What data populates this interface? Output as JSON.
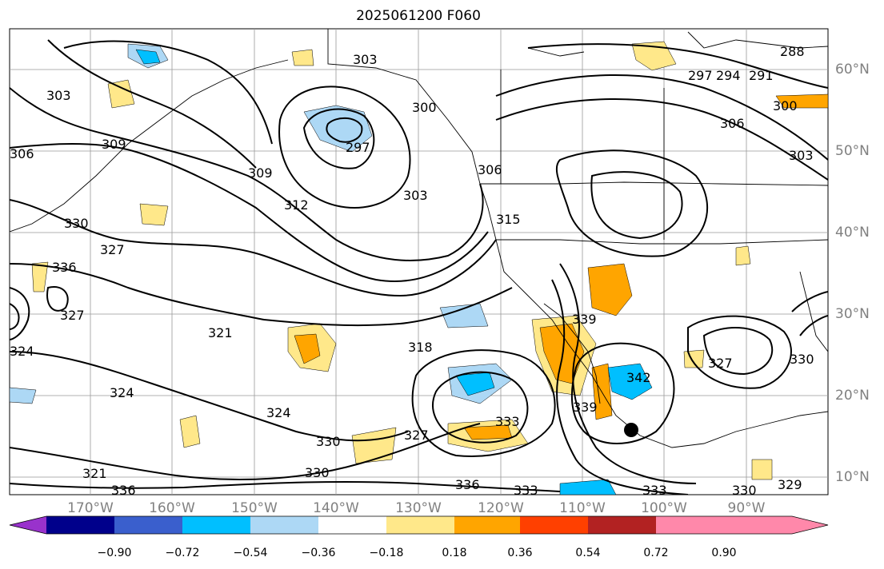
{
  "title": "2025061200 F060",
  "lat_labels": [
    "60°N",
    "50°N",
    "40°N",
    "30°N",
    "20°N",
    "10°N"
  ],
  "lon_labels": [
    "170°W",
    "160°W",
    "150°W",
    "140°W",
    "130°W",
    "120°W",
    "110°W",
    "100°W",
    "90°W"
  ],
  "contour_labels": [
    "303",
    "309",
    "309",
    "312",
    "297",
    "300",
    "306",
    "303",
    "303",
    "315",
    "306",
    "303",
    "300",
    "291",
    "294",
    "297",
    "288",
    "327",
    "330",
    "336",
    "327",
    "321",
    "324",
    "324",
    "324",
    "321",
    "330",
    "318",
    "327",
    "330",
    "333",
    "336",
    "339",
    "342",
    "327",
    "330",
    "333",
    "336",
    "339",
    "330",
    "329",
    "333",
    "306"
  ],
  "colorbar": {
    "tick_labels": [
      "−0.90",
      "−0.72",
      "−0.54",
      "−0.36",
      "−0.18",
      "0.18",
      "0.36",
      "0.54",
      "0.72",
      "0.90"
    ],
    "colors": [
      "#9932cc",
      "#00008b",
      "#3a5fcd",
      "#00bfff",
      "#add8f5",
      "#ffffff",
      "#ffe88a",
      "#ffa500",
      "#ff4000",
      "#b22222",
      "#ff88aa"
    ]
  }
}
